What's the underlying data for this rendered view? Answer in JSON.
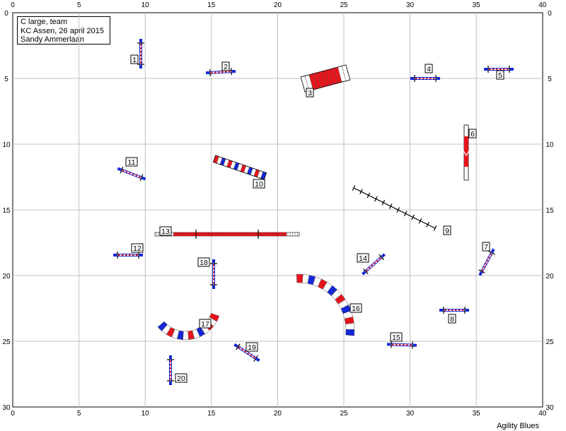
{
  "course": {
    "title": "C large, team",
    "event": "KC Assen, 26 april 2015",
    "judge": "Sandy Ammerlaan"
  },
  "credit": "Agility Blues",
  "axes": {
    "x_ticks": [
      "0",
      "5",
      "10",
      "15",
      "20",
      "25",
      "30",
      "35",
      "40"
    ],
    "y_ticks": [
      "0",
      "5",
      "10",
      "15",
      "20",
      "25",
      "30"
    ]
  },
  "colors": {
    "red": "#e8141c",
    "blue": "#1428d8",
    "grid": "#c0c0c0"
  },
  "obstacles": [
    {
      "number": "1",
      "type": "jump"
    },
    {
      "number": "2",
      "type": "jump"
    },
    {
      "number": "3",
      "type": "tunnel-short"
    },
    {
      "number": "4",
      "type": "jump"
    },
    {
      "number": "5",
      "type": "jump"
    },
    {
      "number": "6",
      "type": "seesaw"
    },
    {
      "number": "7",
      "type": "jump"
    },
    {
      "number": "8",
      "type": "jump"
    },
    {
      "number": "9",
      "type": "weave-poles"
    },
    {
      "number": "10",
      "type": "tunnel"
    },
    {
      "number": "11",
      "type": "jump"
    },
    {
      "number": "12",
      "type": "jump"
    },
    {
      "number": "13",
      "type": "dog-walk"
    },
    {
      "number": "14",
      "type": "jump"
    },
    {
      "number": "15",
      "type": "jump"
    },
    {
      "number": "16",
      "type": "tunnel-curved"
    },
    {
      "number": "17",
      "type": "tunnel-curved"
    },
    {
      "number": "18",
      "type": "jump"
    },
    {
      "number": "19",
      "type": "jump"
    },
    {
      "number": "20",
      "type": "jump"
    }
  ]
}
